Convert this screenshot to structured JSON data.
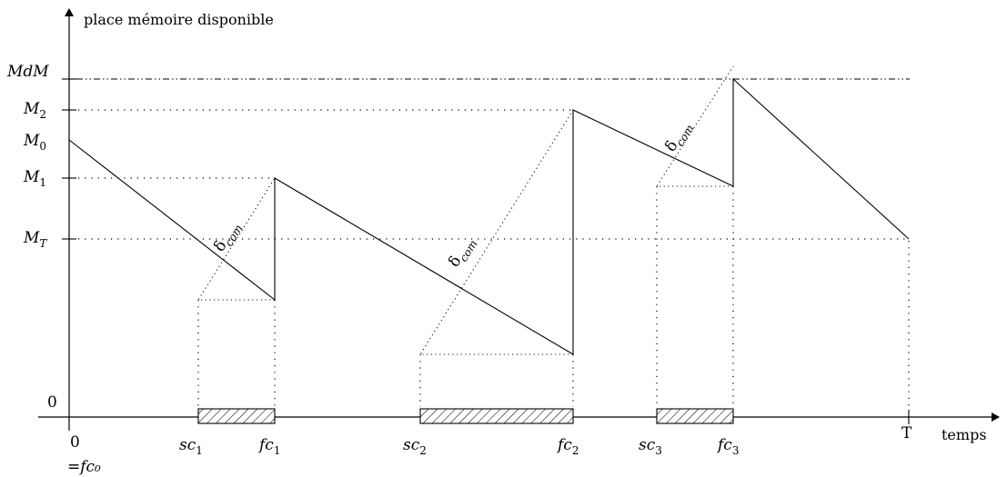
{
  "diagram": {
    "y_axis_label": "place mémoire disponible",
    "x_axis_label": "temps",
    "y_levels": {
      "mdm": "MdM",
      "m2": {
        "base": "M",
        "sub": "2"
      },
      "m0": {
        "base": "M",
        "sub": "0"
      },
      "m1": {
        "base": "M",
        "sub": "1"
      },
      "mt": {
        "base": "M",
        "sub": "T"
      },
      "zero": "0"
    },
    "x_ticks": {
      "origin": "0",
      "origin_alias": "=fc₀",
      "sc1": {
        "base": "sc",
        "sub": "1"
      },
      "fc1": {
        "base": "fc",
        "sub": "1"
      },
      "sc2": {
        "base": "sc",
        "sub": "2"
      },
      "fc2": {
        "base": "fc",
        "sub": "2"
      },
      "sc3": {
        "base": "sc",
        "sub": "3"
      },
      "fc3": {
        "base": "fc",
        "sub": "3"
      },
      "end": "T"
    },
    "delta": {
      "base": "δ",
      "sub": "com"
    }
  }
}
